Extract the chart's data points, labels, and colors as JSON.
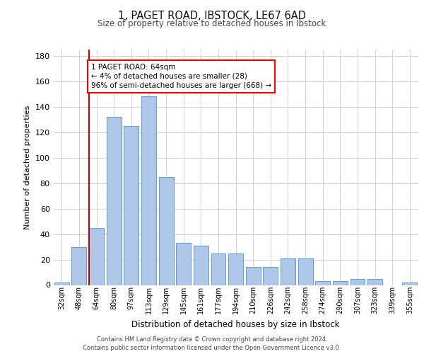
{
  "title1": "1, PAGET ROAD, IBSTOCK, LE67 6AD",
  "title2": "Size of property relative to detached houses in Ibstock",
  "xlabel": "Distribution of detached houses by size in Ibstock",
  "ylabel": "Number of detached properties",
  "categories": [
    "32sqm",
    "48sqm",
    "64sqm",
    "80sqm",
    "97sqm",
    "113sqm",
    "129sqm",
    "145sqm",
    "161sqm",
    "177sqm",
    "194sqm",
    "210sqm",
    "226sqm",
    "242sqm",
    "258sqm",
    "274sqm",
    "290sqm",
    "307sqm",
    "323sqm",
    "339sqm",
    "355sqm"
  ],
  "values": [
    2,
    30,
    45,
    132,
    125,
    148,
    85,
    33,
    31,
    25,
    25,
    14,
    14,
    21,
    21,
    3,
    3,
    5,
    5,
    0,
    2
  ],
  "bar_color": "#aec6e8",
  "bar_edge_color": "#5b9bd5",
  "highlight_idx": 2,
  "highlight_color": "#cc0000",
  "annotation_line1": "1 PAGET ROAD: 64sqm",
  "annotation_line2": "← 4% of detached houses are smaller (28)",
  "annotation_line3": "96% of semi-detached houses are larger (668) →",
  "grid_color": "#d0d0d0",
  "footer1": "Contains HM Land Registry data © Crown copyright and database right 2024.",
  "footer2": "Contains public sector information licensed under the Open Government Licence v3.0.",
  "ylim": [
    0,
    185
  ],
  "yticks": [
    0,
    20,
    40,
    60,
    80,
    100,
    120,
    140,
    160,
    180
  ]
}
